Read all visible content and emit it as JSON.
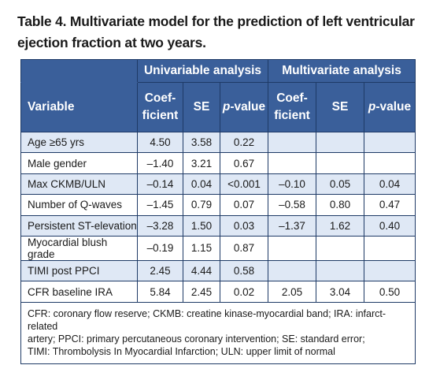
{
  "caption": {
    "line1": "Table 4. Multivariate model for the prediction of left ventricular",
    "line2": "ejection fraction at two years."
  },
  "groups": {
    "univariable": "Univariable analysis",
    "multivariate": "Multivariate analysis"
  },
  "columns": {
    "variable": "Variable",
    "coef_line1": "Coef-",
    "coef_line2": "ficient",
    "se": "SE",
    "p_italic": "p",
    "p_rest": "-value"
  },
  "rows": [
    {
      "label": "Age ≥65 yrs",
      "u_coef": "4.50",
      "u_se": "3.58",
      "u_p": "0.22",
      "m_coef": "",
      "m_se": "",
      "m_p": ""
    },
    {
      "label": "Male gender",
      "u_coef": "–1.40",
      "u_se": "3.21",
      "u_p": "0.67",
      "m_coef": "",
      "m_se": "",
      "m_p": ""
    },
    {
      "label": "Max CKMB/ULN",
      "u_coef": "–0.14",
      "u_se": "0.04",
      "u_p": "<0.001",
      "m_coef": "–0.10",
      "m_se": "0.05",
      "m_p": "0.04"
    },
    {
      "label": "Number of Q-waves",
      "u_coef": "–1.45",
      "u_se": "0.79",
      "u_p": "0.07",
      "m_coef": "–0.58",
      "m_se": "0.80",
      "m_p": "0.47"
    },
    {
      "label": "Persistent ST-elevation",
      "u_coef": "–3.28",
      "u_se": "1.50",
      "u_p": "0.03",
      "m_coef": "–1.37",
      "m_se": "1.62",
      "m_p": "0.40"
    },
    {
      "label": "Myocardial blush grade",
      "u_coef": "–0.19",
      "u_se": "1.15",
      "u_p": "0.87",
      "m_coef": "",
      "m_se": "",
      "m_p": ""
    },
    {
      "label": "TIMI post PPCI",
      "u_coef": "2.45",
      "u_se": "4.44",
      "u_p": "0.58",
      "m_coef": "",
      "m_se": "",
      "m_p": ""
    },
    {
      "label": "CFR baseline IRA",
      "u_coef": "5.84",
      "u_se": "2.45",
      "u_p": "0.02",
      "m_coef": "2.05",
      "m_se": "3.04",
      "m_p": "0.50"
    }
  ],
  "footnote": {
    "line1": "CFR: coronary flow reserve; CKMB: creatine kinase-myocardial band; IRA: infarct-related",
    "line2": "artery; PPCI: primary percutaneous coronary intervention; SE: standard error;",
    "line3": "TIMI: Thrombolysis In Myocardial Infarction; ULN: upper limit of normal"
  },
  "colors": {
    "header_bg": "#3a5f9a",
    "row_tint": "#dfe8f5",
    "border": "#1e3a66"
  }
}
